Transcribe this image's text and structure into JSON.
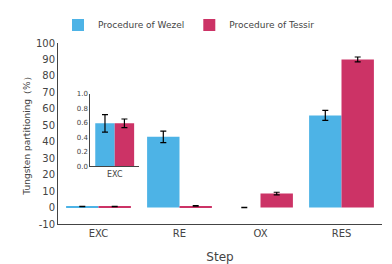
{
  "chart_data": [
    {
      "type": "bar",
      "categories": [
        "EXC",
        "RE",
        "OX",
        "RES"
      ],
      "series": [
        {
          "name": "Procedure of Wezel",
          "color": "#4db3e6",
          "values": [
            0.6,
            43.0,
            0.0,
            56.0
          ],
          "errors": [
            0.12,
            3.5,
            0.05,
            3.0
          ]
        },
        {
          "name": "Procedure of Tessir",
          "color": "#cc3366",
          "values": [
            0.6,
            1.0,
            8.5,
            90.0
          ],
          "errors": [
            0.06,
            0.2,
            0.8,
            1.5
          ]
        }
      ],
      "xlabel": "Step",
      "ylabel": "Tungsten partitioning（%）",
      "ylim": [
        -10,
        100
      ],
      "yticks": [
        -10,
        0,
        10,
        20,
        30,
        40,
        50,
        60,
        70,
        80,
        90,
        100
      ],
      "legend": "upper left",
      "grid": false
    },
    {
      "type": "bar",
      "categories": [
        "EXC"
      ],
      "series": [
        {
          "color": "#4db3e6",
          "values": [
            0.59
          ],
          "errors": [
            0.12
          ]
        },
        {
          "color": "#cc3366",
          "values": [
            0.59
          ],
          "errors": [
            0.06
          ]
        }
      ],
      "ylim": [
        0.0,
        1.0
      ],
      "yticks": [
        {
          "value": 0.0,
          "label": "0.0"
        },
        0.2,
        0.4,
        0.6,
        0.8,
        {
          "value": 1.0,
          "label": "1.0"
        }
      ],
      "grid": false
    }
  ]
}
